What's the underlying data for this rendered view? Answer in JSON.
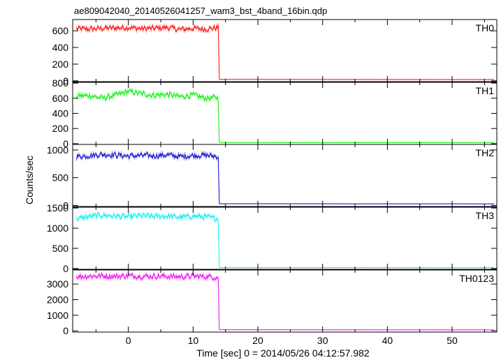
{
  "title": "ae809042040_20140526041257_wam3_bst_4band_16bin.qdp",
  "xlabel": "Time [sec] 0 = 2014/05/26 04:12:57.982",
  "ylabel": "Counts/sec",
  "chart_data": {
    "type": "line",
    "xlim": [
      -8.6,
      56.9
    ],
    "x_ticks": [
      0,
      10,
      20,
      30,
      40,
      50
    ],
    "x_tick_labels": [
      "0",
      "10",
      "20",
      "30",
      "40",
      "50"
    ],
    "grid": false,
    "panels": [
      {
        "name": "TH0",
        "color": "#ff0000",
        "ylim": [
          -10,
          735
        ],
        "y_ticks": [
          0,
          200,
          400,
          600
        ],
        "y_tick_labels": [
          "0",
          "200",
          "400",
          "600"
        ],
        "segments": [
          {
            "x": [
              -8,
              -6,
              -4,
              -2,
              0,
              2,
              4,
              6,
              8,
              10,
              12,
              13.9
            ],
            "y": [
              625,
              620,
              630,
              635,
              640,
              625,
              630,
              640,
              615,
              630,
              620,
              640
            ]
          },
          {
            "x": [
              14.2,
              56.5
            ],
            "y": [
              18,
              15
            ]
          }
        ]
      },
      {
        "name": "TH1",
        "color": "#00ee00",
        "ylim": [
          -10,
          810
        ],
        "y_ticks": [
          0,
          200,
          400,
          600,
          800
        ],
        "y_tick_labels": [
          "0",
          "200",
          "400",
          "600",
          "800"
        ],
        "segments": [
          {
            "x": [
              -8,
              -6,
              -4,
              -2,
              0,
              2,
              4,
              6,
              8,
              10,
              12,
              13.9
            ],
            "y": [
              630,
              635,
              600,
              640,
              690,
              660,
              640,
              650,
              620,
              640,
              600,
              610
            ]
          },
          {
            "x": [
              14.2,
              56.5
            ],
            "y": [
              15,
              12
            ]
          }
        ]
      },
      {
        "name": "TH2",
        "color": "#0000cc",
        "ylim": [
          -20,
          1100
        ],
        "y_ticks": [
          0,
          500,
          1000
        ],
        "y_tick_labels": [
          "0",
          "500",
          "1000"
        ],
        "segments": [
          {
            "x": [
              -8,
              -6,
              -4,
              -2,
              0,
              2,
              4,
              6,
              8,
              10,
              12,
              13.9
            ],
            "y": [
              880,
              900,
              920,
              910,
              890,
              900,
              895,
              910,
              880,
              900,
              905,
              880
            ]
          },
          {
            "x": [
              14.2,
              56.5
            ],
            "y": [
              30,
              28
            ]
          }
        ]
      },
      {
        "name": "TH3",
        "color": "#00eeee",
        "ylim": [
          -20,
          1520
        ],
        "y_ticks": [
          0,
          500,
          1000,
          1500
        ],
        "y_tick_labels": [
          "0",
          "500",
          "1000",
          "1500"
        ],
        "segments": [
          {
            "x": [
              -8,
              -6,
              -4,
              -2,
              0,
              2,
              4,
              6,
              8,
              10,
              12,
              13.9
            ],
            "y": [
              1230,
              1290,
              1320,
              1300,
              1280,
              1310,
              1290,
              1300,
              1270,
              1300,
              1280,
              1230
            ]
          },
          {
            "x": [
              14.2,
              56.5
            ],
            "y": [
              25,
              22
            ]
          }
        ]
      },
      {
        "name": "TH0123",
        "color": "#ee00ee",
        "ylim": [
          -80,
          3900
        ],
        "y_ticks": [
          0,
          1000,
          2000,
          3000
        ],
        "y_tick_labels": [
          "0",
          "1000",
          "2000",
          "3000"
        ],
        "segments": [
          {
            "x": [
              -8,
              -6,
              -4,
              -2,
              0,
              2,
              4,
              6,
              8,
              10,
              12,
              13.9
            ],
            "y": [
              3480,
              3510,
              3520,
              3490,
              3530,
              3500,
              3510,
              3490,
              3470,
              3500,
              3480,
              3420
            ]
          },
          {
            "x": [
              14.2,
              56.5
            ],
            "y": [
              70,
              60
            ]
          }
        ]
      }
    ]
  }
}
